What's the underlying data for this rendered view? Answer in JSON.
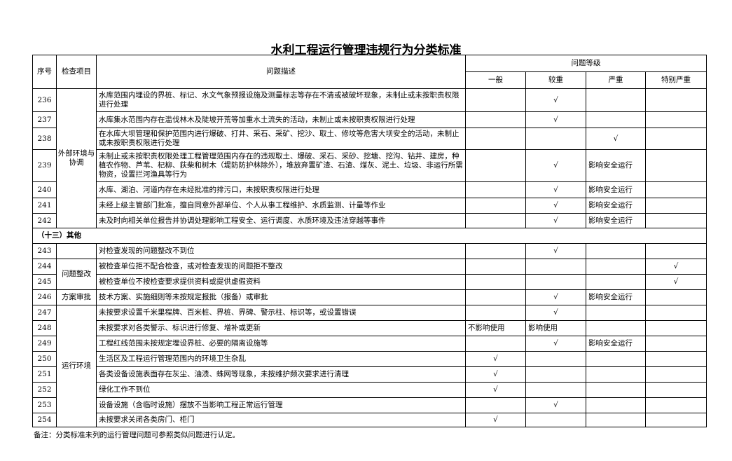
{
  "title": "水利工程运行管理违规行为分类标准",
  "headers": {
    "no": "序号",
    "item": "检查项目",
    "desc": "问题描述",
    "level": "问题等级",
    "levels": [
      "一般",
      "较重",
      "严重",
      "特别严重"
    ]
  },
  "rows": [
    {
      "no": "236",
      "desc": "水库范围内埋设的界桩、标记、水文气象预报设施及测量标志等存在不清或被破坏现象，未制止或未按职责权限进行处理",
      "grades": [
        "",
        "√",
        "",
        ""
      ]
    },
    {
      "no": "237",
      "desc": "水库集水范围内存在滥伐林木及陡坡开荒等加重水土流失的活动，未制止或未按职责权限进行处理",
      "grades": [
        "",
        "√",
        "",
        ""
      ]
    },
    {
      "no": "238",
      "desc": "在水库大坝管理和保护范围内进行爆破、打井、采石、采矿、挖沙、取土、修坟等危害大坝安全的活动，未制止或未按职责权限进行处理",
      "grades": [
        "",
        "",
        "√",
        ""
      ]
    },
    {
      "no": "239",
      "desc": "未制止或未按职责权限处理工程管理范围内存在的违规取土、爆破、采石、采砂、挖塘、挖沟、钻井、建房，种植农作物、芦苇、杞柳、荻柴和树木（堤防防护林除外），堆放弃置矿渣、石渣、煤灰、泥土、垃圾、非运行所需物资，设置拦河渔具等行为",
      "grades": [
        "",
        "√",
        "影响安全运行",
        ""
      ]
    },
    {
      "no": "240",
      "desc": "水库、湖泊、河道内存在未经批准的排污口，未按职责权限进行处理",
      "grades": [
        "",
        "√",
        "影响安全运行",
        ""
      ]
    },
    {
      "no": "241",
      "desc": "未经上级主管部门批准，擅自同意外部单位、个人从事工程维护、水质监测、计量等作业",
      "grades": [
        "",
        "√",
        "影响安全运行",
        ""
      ]
    },
    {
      "no": "242",
      "desc": "未及时向相关单位报告并协调处理影响工程安全、运行调度、水质环境及违法穿越等事件",
      "grades": [
        "",
        "√",
        "影响安全运行",
        ""
      ]
    },
    {
      "section": "（十三）其他"
    },
    {
      "no": "243",
      "desc": "对检查发现的问题整改不到位",
      "grades": [
        "",
        "√",
        "",
        ""
      ]
    },
    {
      "no": "244",
      "desc": "被检查单位拒不配合检查，或对检查发现的问题拒不整改",
      "grades": [
        "",
        "",
        "",
        "√"
      ]
    },
    {
      "no": "245",
      "desc": "被检查单位不按检查要求提供资料或提供虚假资料",
      "grades": [
        "",
        "",
        "",
        "√"
      ]
    },
    {
      "no": "246",
      "desc": "技术方案、实施细则等未按规定报批（报备）或审批",
      "grades": [
        "",
        "√",
        "影响安全运行",
        ""
      ]
    },
    {
      "no": "247",
      "desc": "未按要求设置千米里程牌、百米桩、界桩、界碑、警示柱、标识等，或设置错误",
      "grades": [
        "",
        "√",
        "",
        ""
      ]
    },
    {
      "no": "248",
      "desc": "未按要求对各类警示、标识进行修复、增补或更新",
      "grades": [
        "不影响使用",
        "影响使用",
        "",
        ""
      ]
    },
    {
      "no": "249",
      "desc": "工程红线范围未按规定埋设界桩、必要的隔离设施等",
      "grades": [
        "",
        "√",
        "影响安全运行",
        ""
      ]
    },
    {
      "no": "250",
      "desc": "生活区及工程运行管理范围内的环境卫生杂乱",
      "grades": [
        "√",
        "",
        "",
        ""
      ]
    },
    {
      "no": "251",
      "desc": "各类设备设施表面存在灰尘、油渍、蛛网等现象，未按维护频次要求进行清理",
      "grades": [
        "√",
        "",
        "",
        ""
      ]
    },
    {
      "no": "252",
      "desc": "绿化工作不到位",
      "grades": [
        "√",
        "",
        "",
        ""
      ]
    },
    {
      "no": "253",
      "desc": "设备设施（含临时设施）摆放不当影响工程正常运行管理",
      "grades": [
        "",
        "√",
        "",
        ""
      ]
    },
    {
      "no": "254",
      "desc": "未按要求关闭各类房门、柜门",
      "grades": [
        "√",
        "",
        "",
        ""
      ]
    }
  ],
  "categories": [
    {
      "label": "外部环境与协调",
      "start": 0,
      "span": 7
    },
    {
      "label": "",
      "start": 8,
      "span": 1
    },
    {
      "label": "问题整改",
      "start": 9,
      "span": 2
    },
    {
      "label": "方案审批",
      "start": 11,
      "span": 1
    },
    {
      "label": "运行环境",
      "start": 12,
      "span": 8
    }
  ],
  "note": "备注：分类标准未列的运行管理问题可参照类似问题进行认定。"
}
